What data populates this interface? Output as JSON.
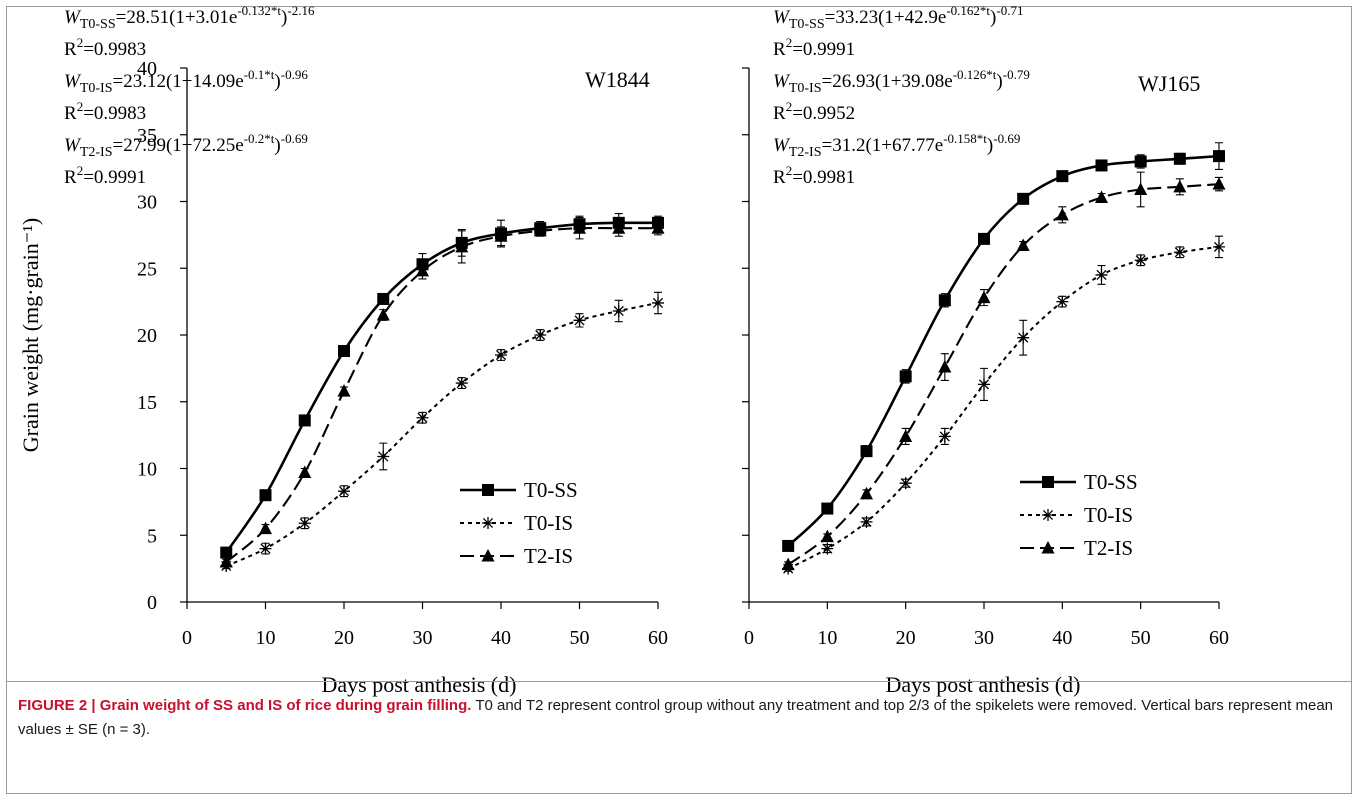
{
  "caption": {
    "title": "FIGURE 2 | Grain weight of SS and IS of rice during grain filling.",
    "text": "T0 and T2 represent control group without any treatment and top 2/3 of the spikelets were removed. Vertical bars represent mean values ± SE (n = 3)."
  },
  "chart_data": [
    {
      "type": "line",
      "panel_label": "W1844",
      "xlabel": "Days post anthesis (d)",
      "ylabel": "Grain weight (mg·grain⁻¹)",
      "xlim": [
        0,
        60
      ],
      "ylim": [
        0,
        40
      ],
      "xticks": [
        "0",
        "10",
        "20",
        "30",
        "40",
        "50",
        "60"
      ],
      "yticks": [
        "0",
        "5",
        "10",
        "15",
        "20",
        "25",
        "30",
        "35",
        "40"
      ],
      "grid": false,
      "legend_position": "lower-right",
      "x": [
        5,
        10,
        15,
        20,
        25,
        30,
        35,
        40,
        45,
        50,
        55,
        60
      ],
      "equations": [
        {
          "var": "W",
          "sub": "T0-SS",
          "expr": "=28.51(1+3.01e",
          "exp": "-0.132*t",
          "post": ")",
          "exp2": "-2.16",
          "r2": "R2=0.9983"
        },
        {
          "var": "W",
          "sub": "T0-IS",
          "expr": "=23.12(1+14.09e",
          "exp": "-0.1*t",
          "post": ")",
          "exp2": "-0.96",
          "r2": "R2=0.9983"
        },
        {
          "var": "W",
          "sub": "T2-IS",
          "expr": "=27.99(1+72.25e",
          "exp": "-0.2*t",
          "post": ")",
          "exp2": "-0.69",
          "r2": "R2=0.9991"
        }
      ],
      "series": [
        {
          "name": "T0-SS",
          "marker": "square",
          "dash": "solid",
          "values": [
            3.7,
            8.0,
            13.6,
            18.8,
            22.7,
            25.3,
            26.9,
            27.6,
            28.0,
            28.3,
            28.4,
            28.4
          ],
          "se": [
            0.2,
            0.2,
            0.2,
            0.3,
            0.3,
            0.8,
            1.0,
            1.0,
            0.5,
            0.6,
            0.7,
            0.5
          ]
        },
        {
          "name": "T0-IS",
          "marker": "asterisk",
          "dash": "dotted",
          "values": [
            2.7,
            4.0,
            5.9,
            8.3,
            10.9,
            13.8,
            16.4,
            18.5,
            20.0,
            21.1,
            21.8,
            22.4
          ],
          "se": [
            0.2,
            0.4,
            0.4,
            0.4,
            1.0,
            0.4,
            0.4,
            0.4,
            0.4,
            0.5,
            0.8,
            0.8
          ]
        },
        {
          "name": "T2-IS",
          "marker": "triangle",
          "dash": "dashed",
          "values": [
            3.0,
            5.5,
            9.7,
            15.8,
            21.5,
            24.8,
            26.6,
            27.4,
            27.8,
            28.0,
            28.0,
            28.0
          ],
          "se": [
            0.2,
            0.3,
            0.3,
            0.3,
            0.4,
            0.6,
            1.2,
            0.7,
            0.4,
            0.8,
            0.6,
            0.5
          ]
        }
      ]
    },
    {
      "type": "line",
      "panel_label": "WJ165",
      "xlabel": "Days post anthesis (d)",
      "ylabel": "",
      "xlim": [
        0,
        60
      ],
      "ylim": [
        0,
        40
      ],
      "xticks": [
        "0",
        "10",
        "20",
        "30",
        "40",
        "50",
        "60"
      ],
      "yticks": [],
      "grid": false,
      "legend_position": "lower-right",
      "x": [
        5,
        10,
        15,
        20,
        25,
        30,
        35,
        40,
        45,
        50,
        55,
        60
      ],
      "equations": [
        {
          "var": "W",
          "sub": "T0-SS",
          "expr": "=33.23(1+42.9e",
          "exp": "-0.162*t",
          "post": ")",
          "exp2": "-0.71",
          "r2": "R2=0.9991"
        },
        {
          "var": "W",
          "sub": "T0-IS",
          "expr": "=26.93(1+39.08e",
          "exp": "-0.126*t",
          "post": ")",
          "exp2": "-0.79",
          "r2": "R2=0.9952"
        },
        {
          "var": "W",
          "sub": "T2-IS",
          "expr": "=31.2(1+67.77e",
          "exp": "-0.158*t",
          "post": ")",
          "exp2": "-0.69",
          "r2": "R2=0.9981"
        }
      ],
      "series": [
        {
          "name": "T0-SS",
          "marker": "square",
          "dash": "solid",
          "values": [
            4.2,
            7.0,
            11.3,
            16.9,
            22.6,
            27.2,
            30.2,
            31.9,
            32.7,
            33.0,
            33.2,
            33.4
          ],
          "se": [
            0.2,
            0.2,
            0.4,
            0.5,
            0.5,
            0.3,
            0.3,
            0.3,
            0.3,
            0.5,
            0.4,
            1.0
          ]
        },
        {
          "name": "T0-IS",
          "marker": "asterisk",
          "dash": "dotted",
          "values": [
            2.5,
            4.0,
            6.0,
            8.9,
            12.4,
            16.3,
            19.8,
            22.5,
            24.5,
            25.6,
            26.2,
            26.6
          ],
          "se": [
            0.2,
            0.3,
            0.3,
            0.3,
            0.6,
            1.2,
            1.3,
            0.4,
            0.7,
            0.4,
            0.4,
            0.8
          ]
        },
        {
          "name": "T2-IS",
          "marker": "triangle",
          "dash": "dashed",
          "values": [
            2.8,
            4.9,
            8.1,
            12.4,
            17.6,
            22.8,
            26.7,
            29.0,
            30.3,
            30.9,
            31.1,
            31.3
          ],
          "se": [
            0.2,
            0.2,
            0.3,
            0.6,
            1.0,
            0.6,
            0.3,
            0.6,
            0.3,
            1.3,
            0.6,
            0.5
          ]
        }
      ]
    }
  ]
}
